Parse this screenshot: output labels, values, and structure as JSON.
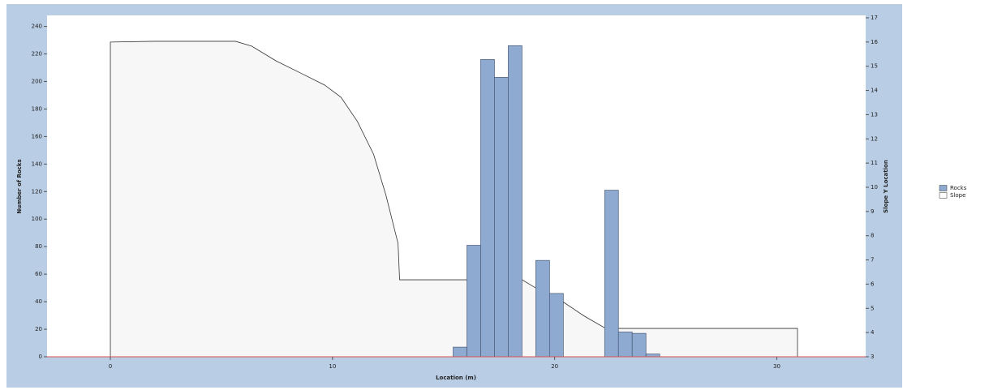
{
  "chart_data": {
    "type": "histogram",
    "xlabel": "Location (m)",
    "ylabel": "Number of Rocks",
    "y2label": "Slope Y Location",
    "bins": [
      15.43,
      16.05,
      16.67,
      17.29,
      17.91,
      18.53,
      19.15,
      19.77,
      20.39,
      21.01,
      21.63,
      22.25,
      22.87,
      23.49,
      24.11,
      24.73
    ],
    "series": [
      {
        "name": "Rocks",
        "color": "#8eaad0",
        "values": [
          7,
          81,
          216,
          203,
          226,
          0,
          70,
          46,
          0,
          0,
          0,
          121,
          18,
          17,
          2
        ]
      },
      {
        "name": "Slope",
        "type": "line",
        "axis": "y2",
        "color": "#333333",
        "x": [
          0,
          0,
          1.97,
          5.63,
          6.36,
          7.46,
          8.56,
          9.65,
          10.38,
          11.12,
          11.85,
          12.4,
          12.95,
          13.02,
          16.05,
          18.53,
          19.15,
          20.26,
          21.35,
          22.3,
          22.92,
          30.93,
          30.93
        ],
        "values": [
          3,
          16.0,
          16.03,
          16.03,
          15.83,
          15.22,
          14.72,
          14.22,
          13.72,
          12.72,
          11.36,
          9.69,
          7.68,
          6.18,
          6.18,
          6.18,
          5.84,
          5.34,
          4.67,
          4.17,
          4.17,
          4.17,
          3
        ]
      }
    ],
    "xlim": [
      -2.85,
      34.0
    ],
    "xticks": [
      0,
      10,
      20,
      30
    ],
    "ylim": [
      0,
      248
    ],
    "yticks": [
      0,
      20,
      40,
      60,
      80,
      100,
      120,
      140,
      160,
      180,
      200,
      220,
      240
    ],
    "y2lim": [
      3,
      17.1
    ],
    "y2ticks": [
      3,
      4,
      5,
      6,
      7,
      8,
      9,
      10,
      11,
      12,
      13,
      14,
      15,
      16,
      17
    ],
    "legend": "right"
  }
}
